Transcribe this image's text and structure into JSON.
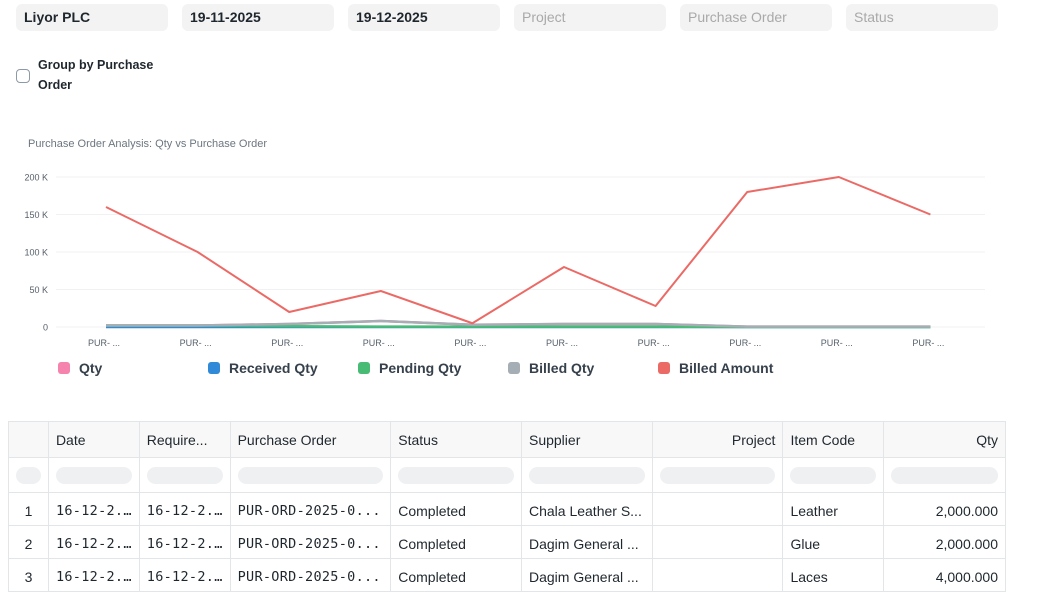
{
  "filters": {
    "company": "Liyor PLC",
    "from_date": "19-11-2025",
    "to_date": "19-12-2025",
    "project_placeholder": "Project",
    "purchase_order_placeholder": "Purchase Order",
    "status_placeholder": "Status"
  },
  "group_by": {
    "label": "Group by Purchase Order",
    "checked": false
  },
  "chart_data": {
    "type": "line",
    "title": "Purchase Order Analysis: Qty vs Purchase Order",
    "categories": [
      "PUR- ...",
      "PUR- ...",
      "PUR- ...",
      "PUR- ...",
      "PUR- ...",
      "PUR- ...",
      "PUR- ...",
      "PUR- ...",
      "PUR- ...",
      "PUR- ..."
    ],
    "y_ticks": [
      "0",
      "50 K",
      "100 K",
      "150 K",
      "200 K"
    ],
    "ylim": [
      0,
      200000
    ],
    "series": [
      {
        "name": "Qty",
        "color": "#f683ae",
        "values": [
          2000,
          2000,
          4000,
          8000,
          3000,
          4000,
          4000,
          500,
          500,
          500
        ]
      },
      {
        "name": "Received Qty",
        "color": "#318ad8",
        "values": [
          0,
          0,
          0,
          0,
          0,
          0,
          0,
          0,
          0,
          0
        ]
      },
      {
        "name": "Pending Qty",
        "color": "#48bb74",
        "values": [
          2000,
          2000,
          1000,
          500,
          500,
          500,
          500,
          0,
          0,
          0
        ]
      },
      {
        "name": "Billed Qty",
        "color": "#a5adb5",
        "values": [
          2000,
          2000,
          4000,
          8000,
          3000,
          4000,
          4000,
          500,
          500,
          500
        ]
      },
      {
        "name": "Billed Amount",
        "color": "#eb6a66",
        "values": [
          160000,
          100000,
          20000,
          48000,
          5000,
          80000,
          28000,
          180000,
          200000,
          150000
        ]
      }
    ],
    "grid": true,
    "legend": "bottom-left"
  },
  "table": {
    "columns": [
      "Date",
      "Require...",
      "Purchase Order",
      "Status",
      "Supplier",
      "Project",
      "Item Code",
      "Qty"
    ],
    "rows": [
      [
        "1",
        "16-12-2...",
        "16-12-2...",
        "PUR-ORD-2025-0...",
        "Completed",
        "Chala Leather S...",
        "",
        "Leather",
        "2,000.000"
      ],
      [
        "2",
        "16-12-2...",
        "16-12-2...",
        "PUR-ORD-2025-0...",
        "Completed",
        "Dagim General ...",
        "",
        "Glue",
        "2,000.000"
      ],
      [
        "3",
        "16-12-2...",
        "16-12-2...",
        "PUR-ORD-2025-0...",
        "Completed",
        "Dagim General ...",
        "",
        "Laces",
        "4,000.000"
      ]
    ]
  }
}
